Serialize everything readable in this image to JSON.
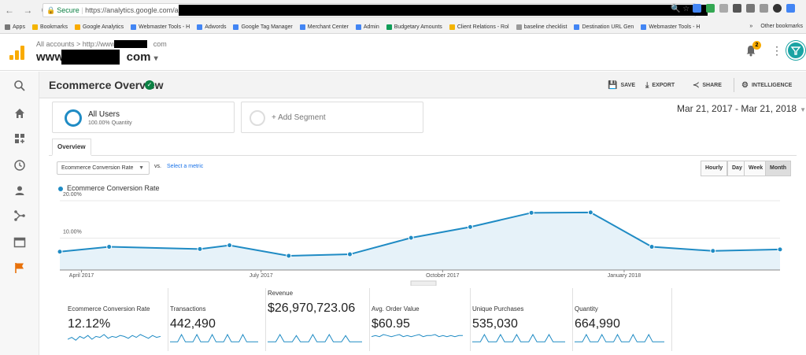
{
  "browser": {
    "nav": "← → C",
    "secure_label": "Secure",
    "url": "https://analytics.google.com/analytics",
    "bookmarks": [
      {
        "label": "Apps",
        "color": "#777"
      },
      {
        "label": "Bookmarks",
        "color": "#f4b400"
      },
      {
        "label": "Google Analytics",
        "color": "#f9ab00"
      },
      {
        "label": "Webmaster Tools - H",
        "color": "#4285f4"
      },
      {
        "label": "Adwords",
        "color": "#4285f4"
      },
      {
        "label": "Google Tag Manager",
        "color": "#4285f4"
      },
      {
        "label": "Merchant Center",
        "color": "#4285f4"
      },
      {
        "label": "Admin",
        "color": "#4285f4"
      },
      {
        "label": "Budgetary Amounts",
        "color": "#0f9d58"
      },
      {
        "label": "Client Relations - Rol",
        "color": "#f4b400"
      },
      {
        "label": "baseline checklist",
        "color": "#999"
      },
      {
        "label": "Destination URL Gen",
        "color": "#4285f4"
      },
      {
        "label": "Webmaster Tools - H",
        "color": "#4285f4"
      }
    ],
    "bookmarks_overflow": "»",
    "other_bookmarks": "Other bookmarks"
  },
  "header": {
    "breadcrumb": "All accounts > http://www.",
    "breadcrumb_suffix": "com",
    "property_prefix": "www.",
    "property_suffix": "com",
    "property_caret": "▾",
    "notification_count": "2",
    "kebab": "⋮"
  },
  "toolbar": {
    "title": "Ecommerce Overview",
    "verified": "✓",
    "save": "SAVE",
    "export": "EXPORT",
    "share": "SHARE",
    "intelligence": "INTELLIGENCE"
  },
  "segments": {
    "primary_name": "All Users",
    "primary_sub": "100.00% Quantity",
    "add_label": "+ Add Segment"
  },
  "date_range": "Mar 21, 2017 - Mar 21, 2018",
  "tabs": {
    "overview": "Overview"
  },
  "metric_picker": {
    "selected": "Ecommerce Conversion Rate",
    "vs": "vs.",
    "select_metric": "Select a metric"
  },
  "intervals": [
    "Hourly",
    "Day",
    "Week",
    "Month"
  ],
  "active_interval": "Month",
  "colors": {
    "series": "#1f8bc4",
    "fill": "#e6f2f9",
    "segment_ring": "#1f8bc4",
    "sparkline": "#1f8bc4"
  },
  "chart_data": {
    "type": "area",
    "series": [
      {
        "name": "Ecommerce Conversion Rate",
        "x": [
          "2017-03-21",
          "2017-04-15",
          "2017-05-31",
          "2017-06-15",
          "2017-07-15",
          "2017-08-15",
          "2017-09-15",
          "2017-10-15",
          "2017-11-15",
          "2017-12-15",
          "2018-01-15",
          "2018-02-15",
          "2018-03-21"
        ],
        "values": [
          4.9,
          6.2,
          5.6,
          6.6,
          3.8,
          4.2,
          8.6,
          11.5,
          15.3,
          15.4,
          6.2,
          5.1,
          5.5
        ]
      }
    ],
    "x_tick_labels": [
      "April 2017",
      "July 2017",
      "October 2017",
      "January 2018"
    ],
    "x_ticks": [
      "2017-04-01",
      "2017-07-01",
      "2017-10-01",
      "2018-01-01"
    ],
    "y_tick_labels": [
      "10.00%",
      "20.00%"
    ],
    "ylim": [
      0,
      20
    ],
    "grid": true,
    "legend": "top-left"
  },
  "scorecards": [
    {
      "label": "Ecommerce Conversion Rate",
      "value": "12.12%",
      "spark": [
        5,
        7,
        4,
        8,
        6,
        9,
        5,
        8,
        7,
        10,
        6,
        8,
        7,
        9,
        8,
        6,
        9,
        7,
        10,
        8,
        6,
        9,
        7,
        8
      ]
    },
    {
      "label": "Transactions",
      "value": "442,490",
      "spark": [
        2,
        2,
        2,
        9,
        2,
        2,
        2,
        9,
        2,
        2,
        2,
        9,
        2,
        2,
        2,
        9,
        2,
        2,
        2,
        9,
        2,
        2,
        2,
        2
      ]
    },
    {
      "label": "Revenue",
      "value": "$26,970,723.06",
      "spark": [
        2,
        2,
        2,
        9,
        2,
        2,
        2,
        8,
        2,
        2,
        2,
        9,
        2,
        2,
        2,
        9,
        2,
        2,
        2,
        8,
        2,
        2,
        2,
        2
      ]
    },
    {
      "label": "Avg. Order Value",
      "value": "$60.95",
      "spark": [
        7,
        8,
        7,
        9,
        8,
        7,
        8,
        9,
        7,
        8,
        7,
        8,
        9,
        7,
        8,
        8,
        9,
        7,
        8,
        7,
        8,
        7,
        8,
        8
      ]
    },
    {
      "label": "Unique Purchases",
      "value": "535,030",
      "spark": [
        2,
        2,
        2,
        9,
        2,
        2,
        2,
        9,
        2,
        2,
        2,
        9,
        2,
        2,
        2,
        9,
        2,
        2,
        2,
        9,
        2,
        2,
        2,
        2
      ]
    },
    {
      "label": "Quantity",
      "value": "664,990",
      "spark": [
        2,
        2,
        2,
        9,
        2,
        2,
        2,
        9,
        2,
        2,
        2,
        9,
        2,
        2,
        2,
        9,
        2,
        2,
        2,
        9,
        2,
        2,
        2,
        2
      ]
    }
  ],
  "sidebar_icons": [
    "search-icon",
    "home-icon",
    "dashboard-add-icon",
    "realtime-clock-icon",
    "audience-person-icon",
    "acquisition-icon",
    "behavior-icon",
    "conversions-flag-icon"
  ]
}
